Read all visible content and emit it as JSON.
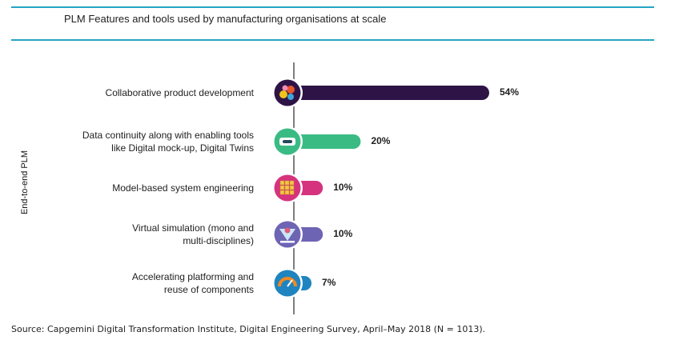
{
  "title": "PLM Features and tools used by manufacturing organisations at scale",
  "source": "Source: Capgemini Digital Transformation Institute, Digital Engineering Survey, April–May 2018 (N = 1013).",
  "chart_data": {
    "type": "bar",
    "orientation": "horizontal",
    "title": "PLM Features and tools used by manufacturing organisations at scale",
    "ylabel": "End-to-end PLM",
    "xlabel": "",
    "categories": [
      "Collaborative product development",
      "Data continuity along with enabling tools like Digital mock-up, Digital Twins",
      "Model-based system engineering",
      "Virtual simulation (mono and multi-disciplines)",
      "Accelerating platforming and reuse of components"
    ],
    "category_lines": [
      [
        "Collaborative product development"
      ],
      [
        "Data continuity along with enabling tools",
        "like Digital mock-up, Digital Twins"
      ],
      [
        "Model-based system engineering"
      ],
      [
        "Virtual simulation (mono and",
        "multi-disciplines)"
      ],
      [
        "Accelerating platforming and",
        "reuse of components"
      ]
    ],
    "values": [
      54,
      20,
      10,
      10,
      7
    ],
    "value_labels": [
      "54%",
      "20%",
      "10%",
      "10%",
      "7%"
    ],
    "colors": [
      "#2e1446",
      "#3bbb84",
      "#d6337e",
      "#6e64b4",
      "#1f84bf"
    ],
    "icons": [
      "team-puzzle-icon",
      "vr-headset-icon",
      "cube-grid-icon",
      "hologram-projection-icon",
      "speedometer-icon"
    ],
    "xlim": [
      0,
      54
    ],
    "grid": false,
    "legend": "none"
  }
}
